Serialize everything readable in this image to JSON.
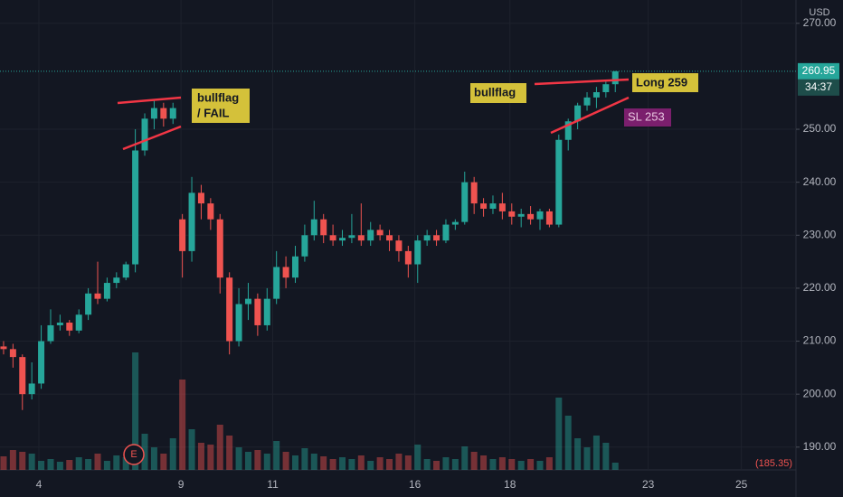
{
  "chart_data": {
    "type": "candlestick",
    "currency": "USD",
    "ohlc": [
      [
        209,
        210,
        207.5,
        208.5
      ],
      [
        208.5,
        209.5,
        205,
        207
      ],
      [
        207,
        207.5,
        197,
        200
      ],
      [
        200,
        206,
        199,
        202
      ],
      [
        202,
        213,
        201,
        210
      ],
      [
        210,
        216,
        209.5,
        213
      ],
      [
        213,
        215,
        212,
        213.5
      ],
      [
        213.5,
        214,
        211,
        212
      ],
      [
        212,
        216,
        211.5,
        215
      ],
      [
        215,
        220,
        214,
        219
      ],
      [
        219,
        225,
        217,
        218
      ],
      [
        218,
        222,
        217.5,
        221
      ],
      [
        221,
        223,
        220,
        222
      ],
      [
        222,
        225,
        221.5,
        224.5
      ],
      [
        224.5,
        250,
        223,
        246
      ],
      [
        246,
        253,
        245,
        252
      ],
      [
        252,
        255.5,
        250,
        254
      ],
      [
        254,
        255,
        250.5,
        252
      ],
      [
        252,
        255,
        251,
        254
      ],
      [
        233,
        234,
        222,
        227
      ],
      [
        227,
        241,
        225,
        238
      ],
      [
        238,
        239.5,
        233,
        236
      ],
      [
        236,
        237,
        231,
        233
      ],
      [
        233,
        234,
        219,
        222
      ],
      [
        222,
        223,
        207.5,
        210
      ],
      [
        210,
        220,
        209,
        217
      ],
      [
        217,
        221,
        214,
        218
      ],
      [
        218,
        219,
        211,
        213
      ],
      [
        213,
        220,
        212,
        218
      ],
      [
        218,
        227,
        217,
        224
      ],
      [
        224,
        226,
        220,
        222
      ],
      [
        222,
        228,
        221,
        226
      ],
      [
        226,
        232,
        225,
        230
      ],
      [
        230,
        236.5,
        229,
        233
      ],
      [
        233,
        234,
        228.5,
        230
      ],
      [
        230,
        232,
        228,
        229
      ],
      [
        229,
        231,
        228,
        229.5
      ],
      [
        229.5,
        234,
        228.5,
        230
      ],
      [
        230,
        236,
        228,
        229
      ],
      [
        229,
        232.5,
        228,
        231
      ],
      [
        231,
        232,
        229,
        230
      ],
      [
        230,
        231,
        227,
        229
      ],
      [
        229,
        230,
        225,
        227
      ],
      [
        227,
        228,
        222,
        224.5
      ],
      [
        224.5,
        230,
        221,
        229
      ],
      [
        229,
        231,
        228,
        230
      ],
      [
        230,
        231,
        228,
        229
      ],
      [
        229,
        233,
        228.5,
        232
      ],
      [
        232,
        233,
        231,
        232.5
      ],
      [
        232.5,
        242,
        232,
        240
      ],
      [
        240,
        241,
        234,
        236
      ],
      [
        236,
        237,
        233.5,
        235
      ],
      [
        235,
        237.5,
        234,
        236
      ],
      [
        236,
        238,
        233,
        234.5
      ],
      [
        234.5,
        236,
        232,
        233.5
      ],
      [
        233.5,
        235,
        231.5,
        234
      ],
      [
        234,
        235.5,
        232,
        233
      ],
      [
        233,
        235,
        231,
        234.5
      ],
      [
        234.5,
        235,
        231.5,
        232
      ],
      [
        232,
        249,
        231.5,
        248
      ],
      [
        248,
        252,
        246,
        251.5
      ],
      [
        251.5,
        255,
        250,
        254.5
      ],
      [
        254.5,
        257,
        253.5,
        256
      ],
      [
        256,
        258,
        254,
        257
      ],
      [
        257,
        259,
        256,
        258.5
      ],
      [
        258.5,
        261,
        257,
        260.95
      ]
    ],
    "volume": [
      15,
      22,
      20,
      18,
      10,
      12,
      9,
      11,
      14,
      12,
      18,
      10,
      16,
      14,
      130,
      40,
      25,
      18,
      35,
      100,
      45,
      30,
      28,
      50,
      38,
      25,
      20,
      22,
      18,
      32,
      20,
      16,
      24,
      18,
      15,
      12,
      14,
      12,
      16,
      10,
      14,
      12,
      18,
      16,
      28,
      12,
      10,
      14,
      12,
      26,
      20,
      16,
      12,
      14,
      12,
      10,
      12,
      10,
      14,
      80,
      60,
      35,
      25,
      38,
      30,
      8
    ],
    "up_color": "#26a69a",
    "down_color": "#ef5350",
    "ylim": [
      185.7,
      274.4
    ],
    "yticks": [
      {
        "value": 270,
        "label": "270.00"
      },
      {
        "value": 250,
        "label": "250.00"
      },
      {
        "value": 240,
        "label": "240.00"
      },
      {
        "value": 230,
        "label": "230.00"
      },
      {
        "value": 220,
        "label": "220.00"
      },
      {
        "value": 210,
        "label": "210.00"
      },
      {
        "value": 200,
        "label": "200.00"
      },
      {
        "value": 190,
        "label": "190.00"
      }
    ],
    "xlim": [
      -0.38,
      84.2
    ],
    "xticks": [
      {
        "value": 3.75,
        "label": "4"
      },
      {
        "value": 18.85,
        "label": "9"
      },
      {
        "value": 28.6,
        "label": "11"
      },
      {
        "value": 43.7,
        "label": "16"
      },
      {
        "value": 53.8,
        "label": "18"
      },
      {
        "value": 68.5,
        "label": "23"
      },
      {
        "value": 78.4,
        "label": "25"
      }
    ],
    "countdown": "34:37",
    "scale_low_label": "(185.35)",
    "earnings_marker": "E",
    "annotations": {
      "flag1_line1": "bullflag",
      "flag1_line2": "/ FAIL",
      "flag2": "bullflag",
      "long": "Long 259",
      "stop": "SL 253"
    }
  }
}
